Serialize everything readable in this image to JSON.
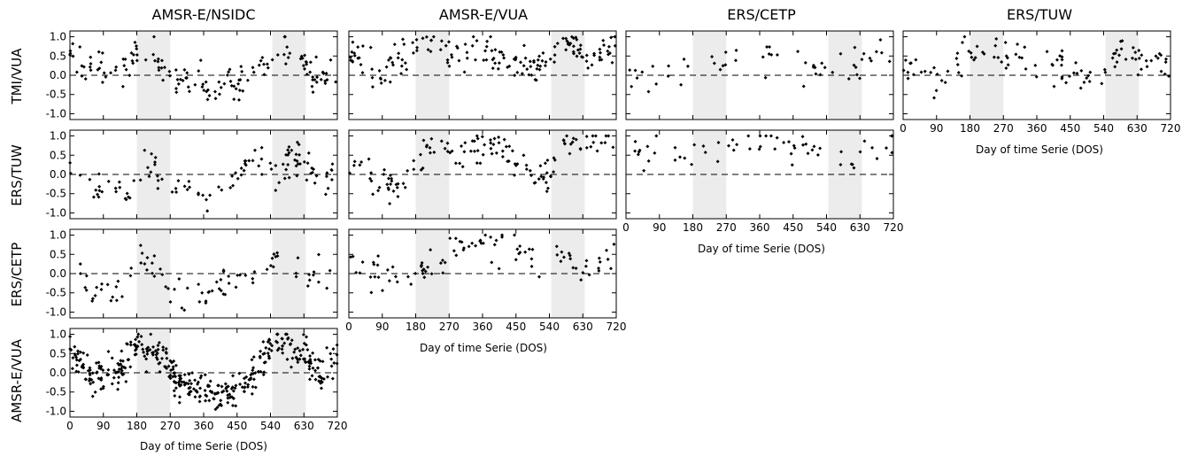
{
  "chart_data": {
    "type": "scatter",
    "column_titles": [
      "AMSR-E/NSIDC",
      "AMSR-E/VUA",
      "ERS/CETP",
      "ERS/TUW"
    ],
    "row_labels": [
      "TMI/VUA",
      "ERS/TUW",
      "ERS/CETP",
      "AMSR-E/VUA"
    ],
    "xlabel": "Day of time Serie (DOS)",
    "xlim": [
      0,
      720
    ],
    "ylim": [
      -1.15,
      1.15
    ],
    "x_ticks": [
      0,
      90,
      180,
      270,
      360,
      450,
      540,
      630,
      720
    ],
    "y_ticks": [
      1.0,
      0.5,
      0.0,
      -0.5,
      -1.0
    ],
    "x_tick_labels": [
      "0",
      "90",
      "180",
      "270",
      "360",
      "450",
      "540",
      "630",
      "720"
    ],
    "y_tick_labels": [
      "1.0",
      "0.5",
      "0.0",
      "-0.5",
      "-1.0"
    ],
    "reference_line_y": 0,
    "shaded_x_ranges": [
      [
        180,
        270
      ],
      [
        545,
        635
      ]
    ],
    "colors": {
      "points": "#000000",
      "shade": "#ececec",
      "frame": "#000000",
      "refline": "#000000"
    },
    "panels": [
      {
        "row": 0,
        "col": 0,
        "density": 150,
        "series": [
          {
            "x": [
              0,
              60,
              110,
              160,
              190,
              230,
              270,
              320,
              380,
              440,
              500,
              540,
              580,
              620,
              650,
              690,
              720
            ],
            "y": [
              0.55,
              0.1,
              0.15,
              0.35,
              0.8,
              0.45,
              -0.1,
              -0.2,
              -0.3,
              -0.3,
              0.0,
              0.35,
              0.75,
              0.6,
              -0.1,
              0.0,
              0.3
            ]
          }
        ]
      },
      {
        "row": 0,
        "col": 1,
        "density": 170,
        "series": [
          {
            "x": [
              0,
              40,
              80,
              130,
              180,
              230,
              280,
              340,
              400,
              450,
              500,
              540,
              580,
              620,
              660,
              720
            ],
            "y": [
              0.7,
              0.4,
              0.1,
              0.5,
              0.85,
              0.8,
              0.5,
              0.65,
              0.55,
              0.3,
              0.15,
              0.55,
              0.85,
              0.65,
              0.55,
              0.6
            ]
          }
        ]
      },
      {
        "row": 0,
        "col": 2,
        "density": 55,
        "series": [
          {
            "x": [
              0,
              60,
              120,
              180,
              230,
              280,
              340,
              400,
              450,
              500,
              560,
              620,
              680,
              720
            ],
            "y": [
              0.1,
              0.0,
              0.05,
              0.3,
              0.3,
              0.35,
              0.5,
              0.45,
              0.35,
              0.1,
              0.3,
              0.3,
              0.55,
              0.5
            ]
          }
        ]
      },
      {
        "row": 0,
        "col": 3,
        "density": 110,
        "series": [
          {
            "x": [
              0,
              40,
              90,
              140,
              190,
              240,
              290,
              350,
              400,
              450,
              500,
              545,
              580,
              630,
              680,
              720
            ],
            "y": [
              0.4,
              0.2,
              -0.1,
              0.05,
              0.6,
              0.65,
              0.5,
              0.5,
              0.45,
              0.0,
              -0.1,
              -0.05,
              0.55,
              0.45,
              0.4,
              0.35
            ]
          }
        ]
      },
      {
        "row": 1,
        "col": 0,
        "density": 115,
        "series": [
          {
            "x": [
              0,
              30,
              70,
              120,
              160,
              200,
              240,
              280,
              330,
              370,
              400,
              440,
              480,
              520,
              560,
              600,
              640,
              680,
              720
            ],
            "y": [
              0.3,
              -0.2,
              -0.35,
              -0.4,
              -0.55,
              0.4,
              0.0,
              -0.4,
              -0.55,
              -0.45,
              -0.6,
              -0.2,
              0.4,
              0.35,
              -0.1,
              0.5,
              0.2,
              -0.3,
              0.3
            ]
          }
        ]
      },
      {
        "row": 1,
        "col": 1,
        "density": 135,
        "series": [
          {
            "x": [
              0,
              50,
              100,
              150,
              200,
              250,
              300,
              360,
              410,
              450,
              500,
              540,
              580,
              620,
              660,
              720
            ],
            "y": [
              0.4,
              0.1,
              -0.2,
              -0.3,
              0.5,
              0.6,
              0.55,
              0.8,
              0.7,
              0.4,
              0.1,
              -0.2,
              0.7,
              0.7,
              0.75,
              0.8
            ]
          }
        ]
      },
      {
        "row": 1,
        "col": 2,
        "density": 60,
        "series": [
          {
            "x": [
              0,
              60,
              120,
              180,
              230,
              280,
              340,
              400,
              460,
              520,
              560,
              600,
              640,
              680,
              720
            ],
            "y": [
              0.6,
              0.65,
              0.6,
              0.5,
              0.6,
              0.85,
              0.9,
              0.85,
              0.75,
              0.6,
              0.5,
              0.0,
              0.7,
              0.75,
              0.75
            ]
          }
        ]
      },
      {
        "row": 2,
        "col": 0,
        "density": 85,
        "series": [
          {
            "x": [
              0,
              30,
              70,
              110,
              150,
              190,
              220,
              260,
              300,
              350,
              400,
              440,
              480,
              530,
              560,
              600,
              640,
              690,
              720
            ],
            "y": [
              0.5,
              -0.1,
              -0.6,
              -0.5,
              -0.3,
              0.6,
              0.0,
              -0.3,
              -0.4,
              -0.6,
              -0.5,
              0.0,
              0.0,
              -0.05,
              0.6,
              0.2,
              -0.1,
              -0.3,
              0.0
            ]
          }
        ]
      },
      {
        "row": 2,
        "col": 1,
        "density": 95,
        "series": [
          {
            "x": [
              0,
              40,
              90,
              140,
              180,
              220,
              270,
              320,
              360,
              410,
              460,
              500,
              545,
              580,
              620,
              660,
              720
            ],
            "y": [
              0.55,
              0.1,
              0.0,
              -0.05,
              0.0,
              0.3,
              0.5,
              0.7,
              0.85,
              0.8,
              0.5,
              0.2,
              0.0,
              0.3,
              -0.1,
              0.1,
              0.6
            ]
          }
        ]
      },
      {
        "row": 3,
        "col": 0,
        "density": 400,
        "series": [
          {
            "x": [
              0,
              30,
              60,
              100,
              140,
              180,
              220,
              260,
              300,
              350,
              400,
              440,
              480,
              520,
              560,
              600,
              640,
              680,
              720
            ],
            "y": [
              0.75,
              0.3,
              -0.2,
              -0.1,
              0.1,
              0.7,
              0.6,
              0.2,
              -0.35,
              -0.35,
              -0.6,
              -0.5,
              -0.15,
              0.3,
              0.8,
              0.75,
              0.3,
              -0.1,
              0.45
            ]
          }
        ]
      }
    ]
  }
}
